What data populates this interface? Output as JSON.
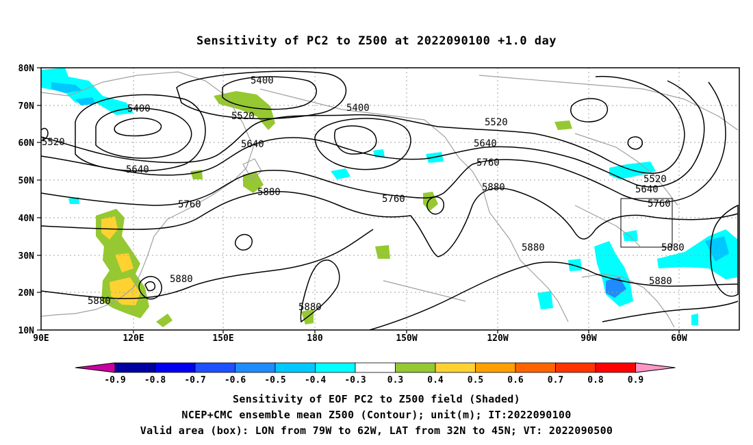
{
  "title": "Sensitivity of PC2 to Z500 at 2022090100 +1.0 day",
  "lat_ticks": [
    "80N",
    "70N",
    "60N",
    "50N",
    "40N",
    "30N",
    "20N",
    "10N"
  ],
  "lon_ticks": [
    "90E",
    "120E",
    "150E",
    "180",
    "150W",
    "120W",
    "90W",
    "60W"
  ],
  "contour_labels": [
    "5400",
    "5400",
    "5400",
    "5520",
    "5520",
    "5520",
    "5520",
    "5640",
    "5640",
    "5640",
    "5640",
    "5760",
    "5760",
    "5760",
    "5760",
    "5880",
    "5880",
    "5880",
    "5880",
    "5880",
    "5880",
    "5880"
  ],
  "colorbar": {
    "labels": [
      "-0.9",
      "-0.8",
      "-0.7",
      "-0.6",
      "-0.5",
      "-0.4",
      "-0.3",
      "0.3",
      "0.4",
      "0.5",
      "0.6",
      "0.7",
      "0.8",
      "0.9"
    ],
    "colors": [
      "#0000a0",
      "#0000f0",
      "#1e50ff",
      "#1e8cff",
      "#00c8ff",
      "#00ffff",
      "#ffffff",
      "#96c832",
      "#ffd232",
      "#ffa000",
      "#ff6400",
      "#ff3200",
      "#ff0000"
    ],
    "low_arrow": "#c800a0",
    "high_arrow": "#ff96c8"
  },
  "captions": {
    "line1": "Sensitivity of EOF PC2 to Z500 field (Shaded)",
    "line2": "NCEP+CMC ensemble mean Z500 (Contour); unit(m); IT:2022090100",
    "line3": "Valid area (box): LON from 79W to 62W, LAT from 32N to 45N; VT: 2022090500"
  }
}
